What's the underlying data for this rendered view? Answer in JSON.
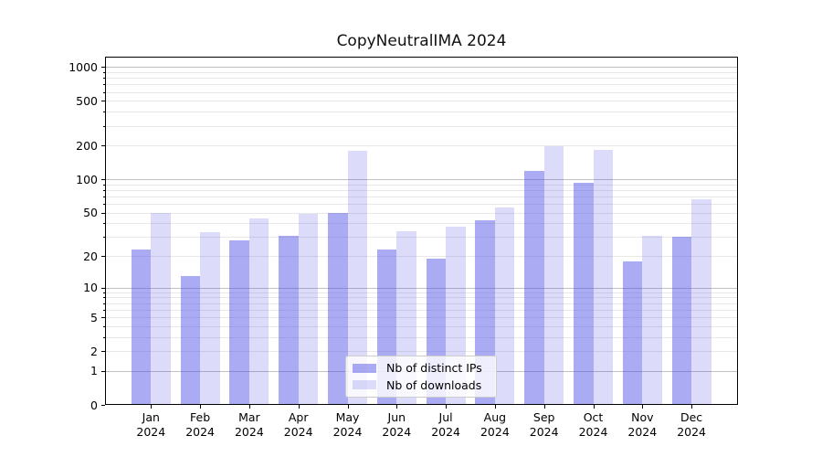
{
  "title": "CopyNeutralIMA 2024",
  "chart_data": {
    "type": "bar",
    "title": "CopyNeutralIMA 2024",
    "categories": [
      "Jan",
      "Feb",
      "Mar",
      "Apr",
      "May",
      "Jun",
      "Jul",
      "Aug",
      "Sep",
      "Oct",
      "Nov",
      "Dec"
    ],
    "x_tick_year": "2024",
    "series": [
      {
        "name": "Nb of distinct IPs",
        "color": "rgba(80,80,230,0.48)",
        "values": [
          23,
          13,
          28,
          31,
          50,
          23,
          19,
          43,
          118,
          93,
          18,
          30
        ]
      },
      {
        "name": "Nb of downloads",
        "color": "rgba(80,80,230,0.20)",
        "values": [
          50,
          33,
          44,
          49,
          180,
          34,
          37,
          56,
          197,
          183,
          31,
          66
        ]
      }
    ],
    "yscale": "log1p",
    "ylim": [
      0,
      1237
    ],
    "yticks": [
      0,
      1,
      2,
      5,
      10,
      20,
      50,
      100,
      200,
      500,
      1000
    ],
    "grid": "both",
    "legend_position": "lower center"
  },
  "colors": {
    "bar_base": "#5050e6",
    "grid_major": "#c0c0c0",
    "grid_minor": "#e8e8e8",
    "spine": "#000000",
    "legend_border": "#cccccc",
    "legend_background": "rgba(255,255,255,0.8)",
    "text": "#000000"
  }
}
